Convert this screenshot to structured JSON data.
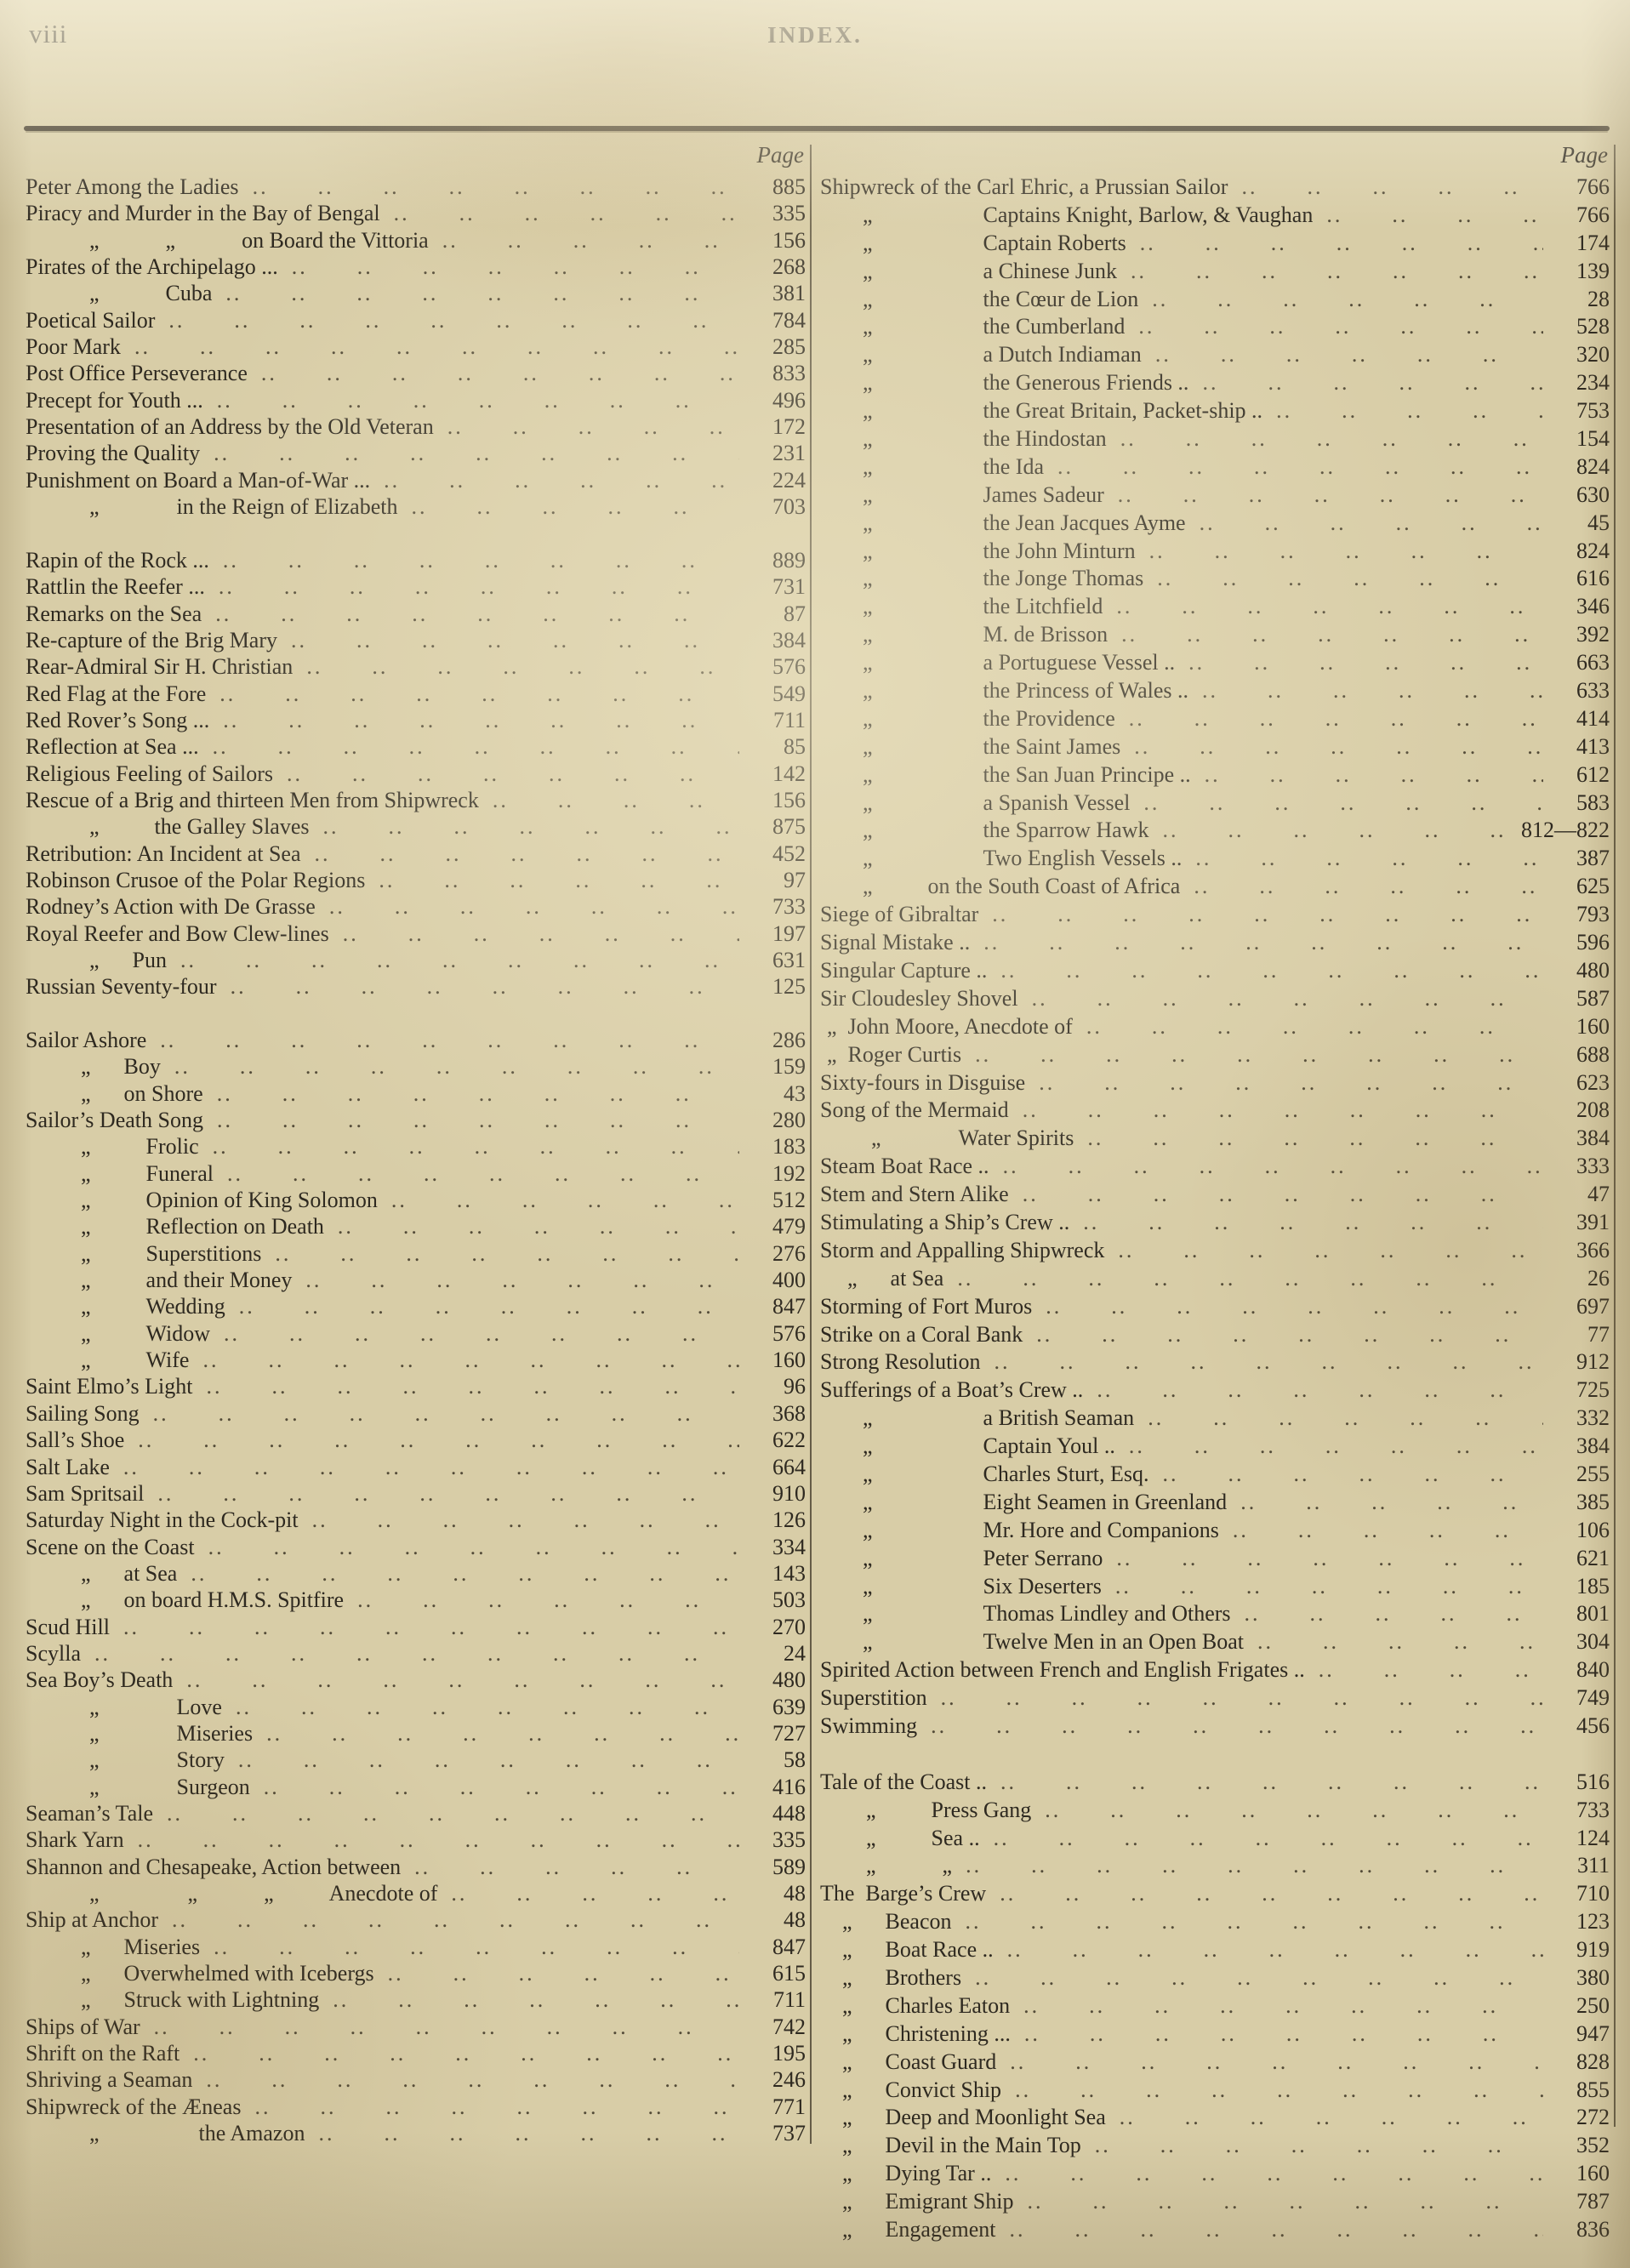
{
  "page": {
    "folio": "viii",
    "title": "INDEX.",
    "col_header": "Page"
  },
  "layout": {
    "leader_unit": "..  ",
    "leader_repeat": 30,
    "ink_color": "#2e2920",
    "paper_color": "#d8cda7"
  },
  "left": [
    {
      "t": "Peter Among the Ladies",
      "p": "885"
    },
    {
      "t": "Piracy and Murder in the Bay of Bengal",
      "p": "335"
    },
    {
      "t": "„   „   on Board the Vittoria",
      "p": "156",
      "in": 75
    },
    {
      "t": "Pirates of the Archipelago ...",
      "p": "268"
    },
    {
      "t": "„   Cuba",
      "p": "381",
      "in": 75
    },
    {
      "t": "Poetical Sailor",
      "p": "784"
    },
    {
      "t": "Poor Mark",
      "p": "285"
    },
    {
      "t": "Post Office Perseverance",
      "p": "833"
    },
    {
      "t": "Precept for Youth ...",
      "p": "496"
    },
    {
      "t": "Presentation of an Address by the Old Veteran",
      "p": "172"
    },
    {
      "t": "Proving the Quality",
      "p": "231"
    },
    {
      "t": "Punishment on Board a Man-of-War ...",
      "p": "224"
    },
    {
      "t": "„    in the Reign of Elizabeth",
      "p": "703",
      "in": 75
    },
    {
      "gap": true
    },
    {
      "t": "Rapin of the Rock ...",
      "p": "889"
    },
    {
      "t": "Rattlin the Reefer ...",
      "p": "731"
    },
    {
      "t": "Remarks on the Sea",
      "p": "87"
    },
    {
      "t": "Re-capture of the Brig Mary",
      "p": "384"
    },
    {
      "t": "Rear-Admiral Sir H. Christian",
      "p": "576"
    },
    {
      "t": "Red Flag at the Fore",
      "p": "549"
    },
    {
      "t": "Red Rover’s Song ...",
      "p": "711"
    },
    {
      "t": "Reflection at Sea ...",
      "p": "85"
    },
    {
      "t": "Religious Feeling of Sailors",
      "p": "142"
    },
    {
      "t": "Rescue of a Brig and thirteen Men from Shipwreck",
      "p": "156"
    },
    {
      "t": "„   the Galley Slaves",
      "p": "875",
      "in": 75
    },
    {
      "t": "Retribution: An Incident at Sea",
      "p": "452"
    },
    {
      "t": "Robinson Crusoe of the Polar Regions",
      "p": "97"
    },
    {
      "t": "Rodney’s Action with De Grasse",
      "p": "733"
    },
    {
      "t": "Royal Reefer and Bow Clew-lines",
      "p": "197"
    },
    {
      "t": "„  Pun",
      "p": "631",
      "in": 75
    },
    {
      "t": "Russian Seventy-four",
      "p": "125"
    },
    {
      "gap": true
    },
    {
      "t": "Sailor Ashore",
      "p": "286"
    },
    {
      "t": "„  Boy",
      "p": "159",
      "in": 65
    },
    {
      "t": "„  on Shore",
      "p": "43",
      "in": 65
    },
    {
      "t": "Sailor’s Death Song",
      "p": "280"
    },
    {
      "t": "„   Frolic",
      "p": "183",
      "in": 65
    },
    {
      "t": "„   Funeral",
      "p": "192",
      "in": 65
    },
    {
      "t": "„   Opinion of King Solomon",
      "p": "512",
      "in": 65
    },
    {
      "t": "„   Reflection on Death",
      "p": "479",
      "in": 65
    },
    {
      "t": "„   Superstitions",
      "p": "276",
      "in": 65
    },
    {
      "t": "„   and their Money",
      "p": "400",
      "in": 65
    },
    {
      "t": "„   Wedding",
      "p": "847",
      "in": 65
    },
    {
      "t": "„   Widow",
      "p": "576",
      "in": 65
    },
    {
      "t": "„   Wife",
      "p": "160",
      "in": 65
    },
    {
      "t": "Saint Elmo’s Light",
      "p": "96"
    },
    {
      "t": "Sailing Song",
      "p": "368"
    },
    {
      "t": "Sall’s Shoe",
      "p": "622"
    },
    {
      "t": "Salt Lake",
      "p": "664"
    },
    {
      "t": "Sam Spritsail",
      "p": "910"
    },
    {
      "t": "Saturday Night in the Cock-pit",
      "p": "126"
    },
    {
      "t": "Scene on the Coast",
      "p": "334"
    },
    {
      "t": "„  at Sea",
      "p": "143",
      "in": 65
    },
    {
      "t": "„  on board H.M.S. Spitfire",
      "p": "503",
      "in": 65
    },
    {
      "t": "Scud Hill",
      "p": "270"
    },
    {
      "t": "Scylla",
      "p": "24"
    },
    {
      "t": "Sea Boy’s Death",
      "p": "480"
    },
    {
      "t": "„    Love",
      "p": "639",
      "in": 75
    },
    {
      "t": "„    Miseries",
      "p": "727",
      "in": 75
    },
    {
      "t": "„    Story",
      "p": "58",
      "in": 75
    },
    {
      "t": "„    Surgeon",
      "p": "416",
      "in": 75
    },
    {
      "t": "Seaman’s Tale",
      "p": "448"
    },
    {
      "t": "Shark Yarn",
      "p": "335"
    },
    {
      "t": "Shannon and Chesapeake, Action between",
      "p": "589"
    },
    {
      "t": "„    „   „   Anecdote of",
      "p": "48",
      "in": 75
    },
    {
      "t": "Ship at Anchor",
      "p": "48"
    },
    {
      "t": "„  Miseries",
      "p": "847",
      "in": 65
    },
    {
      "t": "„  Overwhelmed with Icebergs",
      "p": "615",
      "in": 65
    },
    {
      "t": "„  Struck with Lightning",
      "p": "711",
      "in": 65
    },
    {
      "t": "Ships of War",
      "p": "742"
    },
    {
      "t": "Shrift on the Raft",
      "p": "195"
    },
    {
      "t": "Shriving a Seaman",
      "p": "246"
    },
    {
      "t": "Shipwreck of the Æneas",
      "p": "771"
    },
    {
      "t": "„     the Amazon",
      "p": "737",
      "in": 75
    }
  ],
  "right": [
    {
      "t": "Shipwreck of the Carl Ehric, a Prussian Sailor",
      "p": "766"
    },
    {
      "t": "„     Captains Knight, Barlow, & Vaughan",
      "p": "766",
      "in": 50
    },
    {
      "t": "„     Captain Roberts",
      "p": "174",
      "in": 50
    },
    {
      "t": "„     a Chinese Junk",
      "p": "139",
      "in": 50
    },
    {
      "t": "„     the Cœur de Lion",
      "p": "28",
      "in": 50
    },
    {
      "t": "„     the Cumberland",
      "p": "528",
      "in": 50
    },
    {
      "t": "„     a Dutch Indiaman",
      "p": "320",
      "in": 50
    },
    {
      "t": "„     the Generous Friends ..",
      "p": "234",
      "in": 50
    },
    {
      "t": "„     the Great Britain, Packet-ship ..",
      "p": "753",
      "in": 50
    },
    {
      "t": "„     the Hindostan",
      "p": "154",
      "in": 50
    },
    {
      "t": "„     the Ida",
      "p": "824",
      "in": 50
    },
    {
      "t": "„     James Sadeur",
      "p": "630",
      "in": 50
    },
    {
      "t": "„     the Jean Jacques Ayme",
      "p": "45",
      "in": 50
    },
    {
      "t": "„     the John Minturn",
      "p": "824",
      "in": 50
    },
    {
      "t": "„     the Jonge Thomas",
      "p": "616",
      "in": 50
    },
    {
      "t": "„     the Litchfield",
      "p": "346",
      "in": 50
    },
    {
      "t": "„     M. de Brisson",
      "p": "392",
      "in": 50
    },
    {
      "t": "„     a Portuguese Vessel ..",
      "p": "663",
      "in": 50
    },
    {
      "t": "„     the Princess of Wales ..",
      "p": "633",
      "in": 50
    },
    {
      "t": "„     the Providence",
      "p": "414",
      "in": 50
    },
    {
      "t": "„     the Saint James",
      "p": "413",
      "in": 50
    },
    {
      "t": "„     the San Juan Principe ..",
      "p": "612",
      "in": 50
    },
    {
      "t": "„     a Spanish Vessel",
      "p": "583",
      "in": 50
    },
    {
      "t": "„     the Sparrow Hawk",
      "p": "812—822",
      "in": 50
    },
    {
      "t": "„     Two English Vessels ..",
      "p": "387",
      "in": 50
    },
    {
      "t": "„   on the South Coast of Africa",
      "p": "625",
      "in": 50
    },
    {
      "t": "Siege of Gibraltar",
      "p": "793"
    },
    {
      "t": "Signal Mistake ..",
      "p": "596"
    },
    {
      "t": "Singular Capture ..",
      "p": "480"
    },
    {
      "t": "Sir Cloudesley Shovel",
      "p": "587"
    },
    {
      "t": "„ John Moore, Anecdote of",
      "p": "160",
      "in": 8
    },
    {
      "t": "„ Roger Curtis",
      "p": "688",
      "in": 8
    },
    {
      "t": "Sixty-fours in Disguise",
      "p": "623"
    },
    {
      "t": "Song of the Mermaid",
      "p": "208"
    },
    {
      "t": "„    Water Spirits",
      "p": "384",
      "in": 60
    },
    {
      "t": "Steam Boat Race ..",
      "p": "333"
    },
    {
      "t": "Stem and Stern Alike",
      "p": "47"
    },
    {
      "t": "Stimulating a Ship’s Crew ..",
      "p": "391"
    },
    {
      "t": "Storm and Appalling Shipwreck",
      "p": "366"
    },
    {
      "t": "„  at Sea",
      "p": "26",
      "in": 32
    },
    {
      "t": "Storming of Fort Muros",
      "p": "697"
    },
    {
      "t": "Strike on a Coral Bank",
      "p": "77"
    },
    {
      "t": "Strong Resolution",
      "p": "912"
    },
    {
      "t": "Sufferings of a Boat’s Crew ..",
      "p": "725"
    },
    {
      "t": "„     a British Seaman",
      "p": "332",
      "in": 50
    },
    {
      "t": "„     Captain Youl ..",
      "p": "384",
      "in": 50
    },
    {
      "t": "„     Charles Sturt, Esq.",
      "p": "255",
      "in": 50
    },
    {
      "t": "„     Eight Seamen in Greenland",
      "p": "385",
      "in": 50
    },
    {
      "t": "„     Mr. Hore and Companions",
      "p": "106",
      "in": 50
    },
    {
      "t": "„     Peter Serrano",
      "p": "621",
      "in": 50
    },
    {
      "t": "„     Six Deserters",
      "p": "185",
      "in": 50
    },
    {
      "t": "„     Thomas Lindley and Others",
      "p": "801",
      "in": 50
    },
    {
      "t": "„     Twelve Men in an Open Boat",
      "p": "304",
      "in": 50
    },
    {
      "t": "Spirited Action between French and English Frigates ..",
      "p": "840"
    },
    {
      "t": "Superstition",
      "p": "749"
    },
    {
      "t": "Swimming",
      "p": "456"
    },
    {
      "gap": true
    },
    {
      "t": "Tale of the Coast ..",
      "p": "516"
    },
    {
      "t": "„   Press Gang",
      "p": "733",
      "in": 54
    },
    {
      "t": "„   Sea ..",
      "p": "124",
      "in": 54
    },
    {
      "t": "„   „",
      "p": "311",
      "in": 54
    },
    {
      "t": "The Barge’s Crew",
      "p": "710"
    },
    {
      "t": "„  Beacon",
      "p": "123",
      "in": 26
    },
    {
      "t": "„  Boat Race ..",
      "p": "919",
      "in": 26
    },
    {
      "t": "„  Brothers",
      "p": "380",
      "in": 26
    },
    {
      "t": "„  Charles Eaton",
      "p": "250",
      "in": 26
    },
    {
      "t": "„  Christening ...",
      "p": "947",
      "in": 26
    },
    {
      "t": "„  Coast Guard",
      "p": "828",
      "in": 26
    },
    {
      "t": "„  Convict Ship",
      "p": "855",
      "in": 26
    },
    {
      "t": "„  Deep and Moonlight Sea",
      "p": "272",
      "in": 26
    },
    {
      "t": "„  Devil in the Main Top",
      "p": "352",
      "in": 26
    },
    {
      "t": "„  Dying Tar ..",
      "p": "160",
      "in": 26
    },
    {
      "t": "„  Emigrant Ship",
      "p": "787",
      "in": 26
    },
    {
      "t": "„  Engagement",
      "p": "836",
      "in": 26
    }
  ]
}
